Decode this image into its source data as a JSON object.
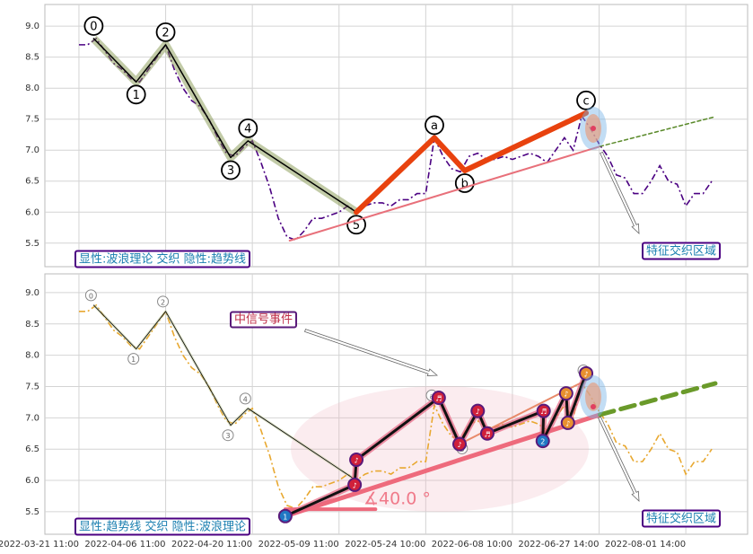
{
  "chart_data": [
    {
      "type": "line",
      "xlim": [
        -3.93,
        77.13
      ],
      "ylim": [
        5.12,
        9.35
      ],
      "yticks": [
        5.5,
        {
          "value": 6,
          "label": "6.0"
        },
        6.5,
        {
          "value": 7,
          "label": "7.0"
        },
        7.5,
        {
          "value": 8,
          "label": "8.0"
        },
        8.5,
        {
          "value": 9,
          "label": "9.0"
        }
      ],
      "price": {
        "color": "#4b0082",
        "values": [
          8.7,
          8.7,
          8.8,
          8.6,
          8.4,
          8.3,
          8.15,
          8.1,
          8.3,
          8.5,
          8.7,
          8.3,
          8.0,
          7.8,
          7.7,
          7.5,
          7.2,
          6.95,
          6.9,
          7.05,
          7.15,
          6.8,
          6.4,
          5.9,
          5.6,
          5.55,
          5.7,
          5.9,
          5.9,
          5.95,
          6.0,
          6.1,
          6.0,
          6.1,
          6.15,
          6.15,
          6.1,
          6.2,
          6.2,
          6.3,
          6.3,
          7.2,
          6.9,
          6.7,
          6.65,
          6.9,
          6.95,
          6.85,
          6.85,
          6.9,
          6.85,
          6.9,
          6.95,
          6.9,
          6.8,
          7.0,
          7.2,
          7.0,
          7.55,
          7.35,
          7.1,
          6.9,
          6.6,
          6.55,
          6.3,
          6.3,
          6.5,
          6.75,
          6.5,
          6.45,
          6.1,
          6.3,
          6.3,
          6.5
        ]
      },
      "lines": [
        {
          "color": "#000000",
          "style": "solid",
          "x": [
            1.7,
            6.6,
            10,
            17.5,
            19.5,
            32
          ],
          "values": [
            8.8,
            8.1,
            8.7,
            6.88,
            7.15,
            6.0
          ],
          "labels": [
            "0",
            "1",
            "2",
            "3",
            "4",
            "5"
          ]
        },
        {
          "color": "#e8420e",
          "style": "solid",
          "x": [
            32,
            41,
            44.5,
            58.5
          ],
          "values": [
            6.0,
            7.2,
            6.67,
            7.6
          ],
          "labels": [
            null,
            "a",
            "b",
            "c"
          ]
        },
        {
          "color": "#e8707a",
          "style": "solid",
          "x": [
            24.3,
            60.1
          ],
          "values": [
            5.54,
            7.06
          ]
        },
        {
          "color": "#5a8a2a",
          "style": "dashed",
          "x": [
            60.1,
            73.4
          ],
          "values": [
            7.06,
            7.54
          ]
        }
      ],
      "annotations": [
        {
          "text": "显性:波浪理论 交织 隐性:趋势线"
        },
        {
          "text": "特征交织区域"
        }
      ]
    },
    {
      "type": "line",
      "xlim": [
        -3.93,
        77.13
      ],
      "ylim": [
        5.14,
        9.3
      ],
      "yticks": [
        5.5,
        {
          "value": 6,
          "label": "6.0"
        },
        6.5,
        {
          "value": 7,
          "label": "7.0"
        },
        7.5,
        {
          "value": 8,
          "label": "8.0"
        },
        8.5,
        {
          "value": 9,
          "label": "9.0"
        }
      ],
      "xticks": [
        {
          "value": 0,
          "label": "2022-03-21 11:00"
        },
        {
          "value": 10,
          "label": "2022-04-06 11:00"
        },
        {
          "value": 20,
          "label": "2022-04-20 11:00"
        },
        {
          "value": 30,
          "label": "2022-05-09 11:00"
        },
        {
          "value": 40,
          "label": "2022-05-24 10:00"
        },
        {
          "value": 50,
          "label": "2022-06-08 10:00"
        },
        {
          "value": 60,
          "label": "2022-06-27 14:00"
        },
        {
          "value": 70,
          "label": "2022-08-01 14:00"
        }
      ],
      "price": {
        "color": "#e8a830",
        "values": [
          8.7,
          8.7,
          8.8,
          8.6,
          8.4,
          8.3,
          8.15,
          8.1,
          8.3,
          8.5,
          8.7,
          8.3,
          8.0,
          7.8,
          7.7,
          7.5,
          7.2,
          6.95,
          6.9,
          7.05,
          7.15,
          6.8,
          6.4,
          5.9,
          5.6,
          5.55,
          5.7,
          5.9,
          5.9,
          5.95,
          6.0,
          6.1,
          6.0,
          6.1,
          6.15,
          6.15,
          6.1,
          6.2,
          6.2,
          6.3,
          6.3,
          7.2,
          6.9,
          6.7,
          6.65,
          6.9,
          6.95,
          6.85,
          6.85,
          6.9,
          6.85,
          6.9,
          6.95,
          6.9,
          6.8,
          7.0,
          7.2,
          7.0,
          7.55,
          7.35,
          7.1,
          6.9,
          6.6,
          6.55,
          6.3,
          6.3,
          6.5,
          6.75,
          6.5,
          6.45,
          6.1,
          6.3,
          6.3,
          6.5
        ]
      },
      "lines": [
        {
          "color": "#000000",
          "style": "solid",
          "x": [
            1.7,
            6.6,
            10,
            17.5,
            19.5,
            32
          ],
          "values": [
            8.8,
            8.1,
            8.7,
            6.88,
            7.15,
            6.0
          ],
          "labels": [
            "0",
            "1",
            "2",
            "3",
            "4",
            null
          ]
        },
        {
          "color": "#888888",
          "style": "none",
          "x": [
            41,
            44.5,
            58.5
          ],
          "values": [
            7.2,
            6.67,
            7.6
          ],
          "labels": [
            "a",
            "b",
            "c"
          ]
        },
        {
          "color": "#ee6a7c",
          "style": "solid",
          "x": [
            23.8,
            60.1
          ],
          "values": [
            5.43,
            7.05
          ]
        },
        {
          "color": "#ee6a7c",
          "style": "solid",
          "x": [
            23.8,
            34.2
          ],
          "values": [
            5.54,
            5.54
          ]
        },
        {
          "color": "#6a9a2a",
          "style": "dashed",
          "x": [
            60.1,
            73.4
          ],
          "values": [
            7.05,
            7.55
          ]
        },
        {
          "color": "#e88a6a",
          "style": "solid",
          "x": [
            43.9,
            58.5
          ],
          "values": [
            6.58,
            7.6
          ]
        },
        {
          "color": "#111111",
          "style": "solid",
          "x": [
            23.8,
            31.8,
            32.0,
            41.5,
            43.9,
            46.0,
            47.1,
            53.6,
            53.5,
            56.2,
            56.4,
            58.5
          ],
          "values": [
            5.43,
            5.93,
            6.33,
            7.32,
            6.58,
            7.11,
            6.75,
            7.11,
            6.63,
            7.39,
            6.92,
            7.71
          ]
        }
      ],
      "nodes": {
        "x": [
          23.8,
          31.8,
          32.0,
          41.5,
          43.9,
          46.0,
          47.1,
          53.6,
          53.5,
          56.2,
          56.4,
          58.5
        ],
        "values": [
          5.43,
          5.93,
          6.33,
          7.32,
          6.58,
          7.11,
          6.75,
          7.11,
          6.63,
          7.39,
          6.92,
          7.71
        ],
        "labels": [
          "1",
          "♪",
          "♪",
          "♬",
          "♪",
          "♪",
          "♬",
          "♬",
          "2",
          "♪",
          "♪",
          "♪"
        ],
        "colors": [
          "#1f77c4",
          "#d0203a",
          "#d0203a",
          "#d0203a",
          "#d0203a",
          "#d0203a",
          "#d0203a",
          "#d0203a",
          "#1f77c4",
          "#e89030",
          "#e89030",
          "#e89030"
        ]
      },
      "annotations": [
        {
          "text": "显性:趋势线 交织 隐性:波浪理论"
        },
        {
          "text": "特征交织区域"
        },
        {
          "text": "中信号事件"
        },
        {
          "text": "∡40.0 °"
        }
      ]
    }
  ]
}
